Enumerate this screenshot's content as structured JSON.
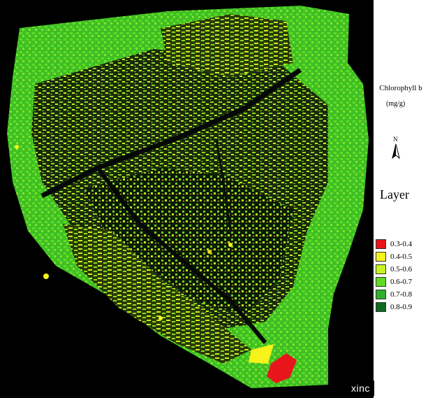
{
  "legend": {
    "title": "Chlorophyll b",
    "unit": "(mg/g)",
    "north_label": "N",
    "layer_label": "Layer",
    "classes": [
      {
        "label": "0.3-0.4",
        "color": "#e8161b"
      },
      {
        "label": "0.4-0.5",
        "color": "#f7f21a"
      },
      {
        "label": "0.5-0.6",
        "color": "#c6f51e"
      },
      {
        "label": "0.6-0.7",
        "color": "#5fdc24"
      },
      {
        "label": "0.7-0.8",
        "color": "#2fb12c"
      },
      {
        "label": "0.8-0.9",
        "color": "#0d6b1f"
      }
    ]
  },
  "watermark": "xinc",
  "map": {
    "background": "#000000",
    "dominant_colors": [
      "#5fdc24",
      "#2fb12c",
      "#c6f51e",
      "#f7f21a",
      "#e8161b"
    ]
  }
}
